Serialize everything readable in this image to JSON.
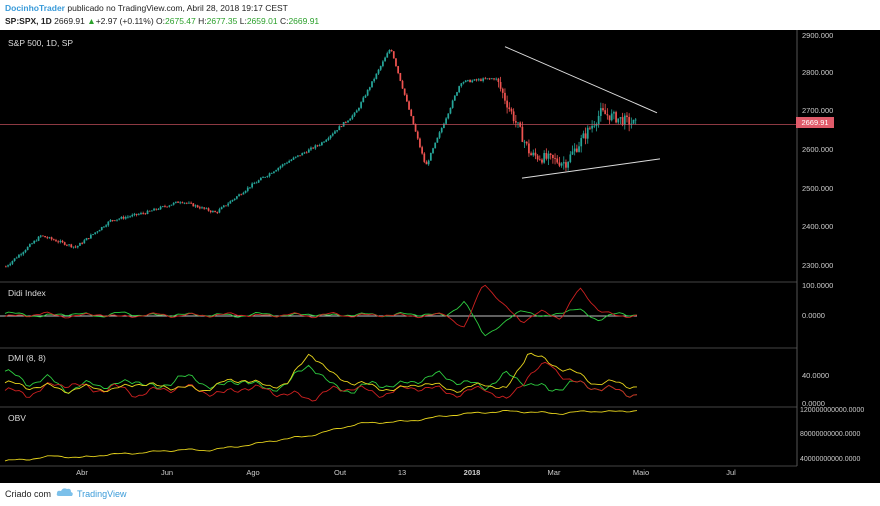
{
  "header": {
    "author": "DocinhoTrader",
    "published": "publicado no TradingView.com, Abril 28, 2018 19:17 CEST",
    "symbol": "SP:SPX, 1D",
    "last": "2669.91",
    "change_arrow": "▲",
    "change": "+2.97 (+0.11%)",
    "o_label": "O:",
    "o_val": "2675.47",
    "h_label": "H:",
    "h_val": "2677.35",
    "l_label": "L:",
    "l_val": "2659.01",
    "c_label": "C:",
    "c_val": "2669.91"
  },
  "panes": {
    "main_title": "S&P 500, 1D, SP",
    "didi_title": "Didi Index",
    "dmi_title": "DMI (8, 8)",
    "obv_title": "OBV"
  },
  "price_tag": "2669.91",
  "colors": {
    "up": "#26a69a",
    "down": "#ef5350",
    "green_line": "#2ecc40",
    "red_line": "#cc2020",
    "yellow_line": "#e6d31c",
    "trend": "#dddddd",
    "price_line": "#e05b6a"
  },
  "footer": {
    "created": "Criado com",
    "brand": "TradingView"
  },
  "chart_data": [
    {
      "type": "line",
      "title": "S&P 500, 1D, SP",
      "y_ticks": [
        "2900.000",
        "2800.000",
        "2700.000",
        "2600.000",
        "2500.000",
        "2400.000",
        "2300.000"
      ],
      "ylim": [
        2270,
        2905
      ],
      "x_ticks": [
        "Abr",
        "Jun",
        "Ago",
        "Out",
        "13",
        "2018",
        "Mar",
        "Maio",
        "Jul"
      ],
      "series": [
        {
          "name": "",
          "x": [
            "2017-03",
            "2017-04",
            "2017-05",
            "2017-06",
            "2017-07",
            "2017-08",
            "2017-09",
            "2017-10",
            "2017-11",
            "2017-12",
            "2018-01-10",
            "2018-01-26",
            "2018-02-08",
            "2018-02-27",
            "2018-03-12",
            "2018-03-23",
            "2018-04-02",
            "2018-04-18",
            "2018-04-27"
          ],
          "values": [
            2300,
            2380,
            2350,
            2420,
            2440,
            2470,
            2440,
            2510,
            2570,
            2620,
            2700,
            2870,
            2560,
            2780,
            2790,
            2590,
            2570,
            2700,
            2670
          ]
        }
      ],
      "last_price": 2669.91
    },
    {
      "type": "line",
      "title": "Didi Index",
      "y_ticks": [
        "100.0000",
        "0.0000"
      ],
      "series": [
        {
          "name": "",
          "values": [
            5,
            2,
            -5,
            4,
            2,
            -3,
            6,
            1,
            -2,
            3,
            -1,
            2,
            -4,
            3,
            1,
            -2,
            4,
            -3,
            2,
            1,
            -1,
            3,
            2,
            -2,
            40,
            -60,
            -30,
            20,
            -10,
            10,
            15,
            -15,
            5,
            0
          ]
        },
        {
          "name": "",
          "values": [
            -5,
            -2,
            5,
            -4,
            -2,
            3,
            -6,
            -1,
            2,
            -3,
            1,
            -2,
            4,
            -3,
            -1,
            2,
            -4,
            3,
            -2,
            -1,
            1,
            -3,
            -2,
            2,
            -40,
            100,
            30,
            -20,
            10,
            -10,
            80,
            15,
            -5,
            0
          ]
        }
      ]
    },
    {
      "type": "line",
      "title": "DMI (8, 8)",
      "y_ticks": [
        "40.0000",
        "0.0000"
      ],
      "series": [
        {
          "name": "",
          "values": [
            45,
            30,
            35,
            20,
            30,
            25,
            35,
            20,
            40,
            30,
            25,
            35,
            20,
            30,
            55,
            25,
            20,
            30,
            25,
            35,
            40,
            30,
            25,
            40,
            30,
            20,
            30,
            25,
            20,
            15
          ]
        },
        {
          "name": "",
          "values": [
            20,
            15,
            25,
            30,
            20,
            25,
            15,
            20,
            25,
            20,
            15,
            25,
            20,
            15,
            10,
            20,
            25,
            15,
            20,
            25,
            20,
            15,
            25,
            5,
            40,
            55,
            30,
            25,
            20,
            15
          ]
        },
        {
          "name": "",
          "values": [
            30,
            25,
            25,
            20,
            25,
            20,
            30,
            25,
            25,
            20,
            30,
            35,
            25,
            30,
            70,
            40,
            30,
            25,
            20,
            30,
            25,
            20,
            30,
            20,
            70,
            55,
            45,
            30,
            30,
            25
          ]
        }
      ]
    },
    {
      "type": "line",
      "title": "OBV",
      "y_ticks": [
        "120000000000.0000",
        "80000000000.0000",
        "40000000000.0000"
      ],
      "series": [
        {
          "name": "",
          "values": [
            40,
            43,
            48,
            45,
            50,
            52,
            55,
            58,
            57,
            62,
            68,
            75,
            80,
            90,
            100,
            102,
            104,
            110,
            115,
            118,
            120,
            118,
            116,
            120,
            119,
            121
          ]
        }
      ]
    }
  ]
}
